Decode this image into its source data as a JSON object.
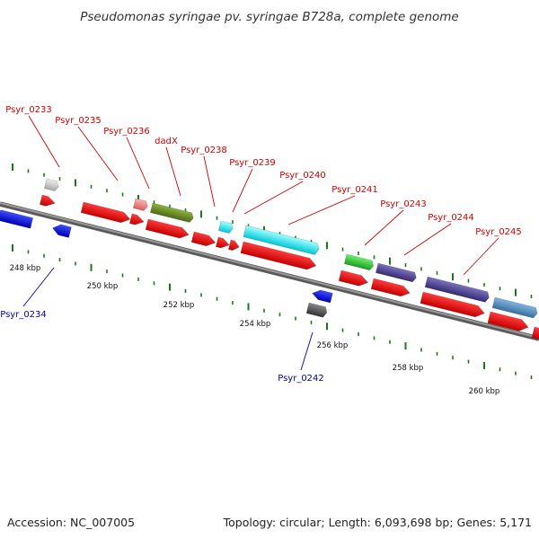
{
  "title": "Pseudomonas syringae pv. syringae B728a, complete genome",
  "footer": {
    "accession": "Accession: NC_007005",
    "summary": "Topology: circular; Length: 6,093,698 bp; Genes: 5,171"
  },
  "scale": {
    "ticks": [
      "248 kbp",
      "250 kbp",
      "252 kbp",
      "254 kbp",
      "256 kbp",
      "258 kbp",
      "260 kbp"
    ]
  },
  "colors": {
    "label_forward": "#cc0000",
    "label_reverse": "#000099",
    "cds": "#ff0000",
    "backbone": "#777777",
    "tick": "#1a7a1a"
  },
  "genes": [
    {
      "name": "Psyr_0233",
      "strand": "forward",
      "color": "#d0d0d0"
    },
    {
      "name": "Psyr_0234",
      "strand": "reverse",
      "color": "#0000ee"
    },
    {
      "name": "Psyr_0235",
      "strand": "forward",
      "color": "#ff0000"
    },
    {
      "name": "Psyr_0236",
      "strand": "forward",
      "color": "#f08080"
    },
    {
      "name": "dadX",
      "strand": "forward",
      "color": "#6b8e23"
    },
    {
      "name": "Psyr_0238",
      "strand": "forward",
      "color": "#00e5ee"
    },
    {
      "name": "Psyr_0239",
      "strand": "forward",
      "color": "#00e5ee"
    },
    {
      "name": "Psyr_0240",
      "strand": "forward",
      "color": "#00e5ee"
    },
    {
      "name": "Psyr_0241",
      "strand": "forward",
      "color": "#32cd32"
    },
    {
      "name": "Psyr_0242",
      "strand": "reverse",
      "color": "#555555"
    },
    {
      "name": "Psyr_0243",
      "strand": "forward",
      "color": "#483d8b"
    },
    {
      "name": "Psyr_0244",
      "strand": "forward",
      "color": "#483d8b"
    },
    {
      "name": "Psyr_0245",
      "strand": "forward",
      "color": "#4682b4"
    }
  ]
}
